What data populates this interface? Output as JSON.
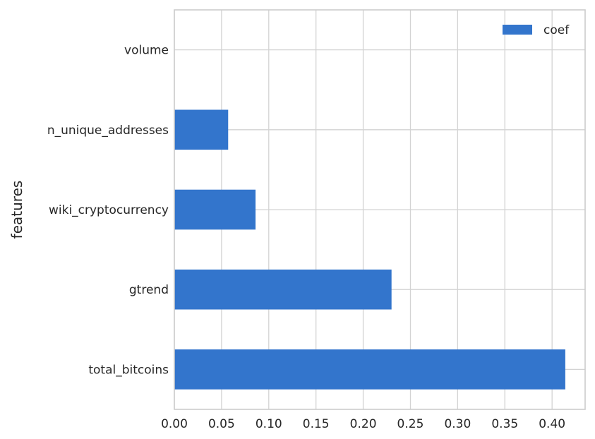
{
  "chart_data": {
    "type": "bar",
    "orientation": "horizontal",
    "categories": [
      "volume",
      "n_unique_addresses",
      "wiki_cryptocurrency",
      "gtrend",
      "total_bitcoins"
    ],
    "series": [
      {
        "name": "coef",
        "values": [
          0.0,
          0.057,
          0.086,
          0.23,
          0.414
        ]
      }
    ],
    "title": "",
    "xlabel": "",
    "ylabel": "features",
    "xlim": [
      0.0,
      0.435
    ],
    "x_ticks": [
      "0.00",
      "0.05",
      "0.10",
      "0.15",
      "0.20",
      "0.25",
      "0.30",
      "0.35",
      "0.40"
    ],
    "grid": true,
    "legend_position": "top-right",
    "colors": {
      "bar": "#3375cc",
      "grid": "#d3d3d3",
      "axes": "#cccccc",
      "text": "#262626"
    }
  }
}
